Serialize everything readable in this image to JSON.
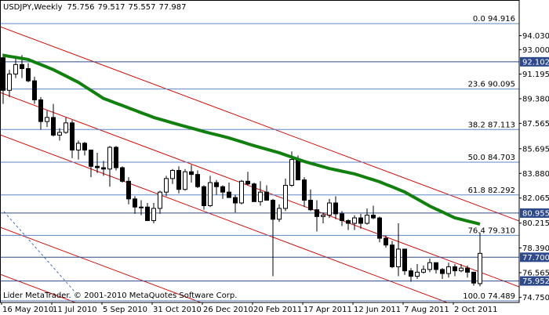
{
  "chart_data": {
    "type": "candlestick",
    "symbol": "USDJPY,Weekly",
    "footer": "Lider MetaTrader. © 2001-2010 MetaQuotes Software Corp.",
    "categories": [
      "16 May 2010",
      null,
      null,
      null,
      null,
      null,
      null,
      null,
      "11 Jul 2010",
      null,
      null,
      null,
      null,
      null,
      null,
      null,
      "5 Sep 2010",
      null,
      null,
      null,
      null,
      null,
      null,
      null,
      "31 Oct 2010",
      null,
      null,
      null,
      null,
      null,
      null,
      null,
      "26 Dec 2010",
      null,
      null,
      null,
      null,
      null,
      null,
      null,
      "20 Feb 2011",
      null,
      null,
      null,
      null,
      null,
      null,
      null,
      "17 Apr 2011",
      null,
      null,
      null,
      null,
      null,
      null,
      null,
      "12 Jun 2011",
      null,
      null,
      null,
      null,
      null,
      null,
      null,
      "7 Aug 2011",
      null,
      null,
      null,
      null,
      null,
      null,
      null,
      "2 Oct 2011",
      null,
      null,
      null,
      null
    ],
    "ohlc": [
      [
        92.4,
        92.7,
        89.0,
        90.0
      ],
      [
        90.0,
        91.5,
        89.5,
        91.2
      ],
      [
        91.2,
        92.4,
        90.9,
        91.9
      ],
      [
        91.9,
        92.6,
        90.9,
        91.6
      ],
      [
        91.6,
        92.0,
        90.6,
        90.7
      ],
      [
        90.7,
        91.0,
        89.0,
        89.3
      ],
      [
        89.3,
        89.5,
        87.1,
        87.7
      ],
      [
        87.7,
        88.5,
        87.3,
        88.0
      ],
      [
        88.0,
        89.0,
        86.6,
        86.7
      ],
      [
        86.7,
        87.2,
        86.3,
        86.9
      ],
      [
        86.9,
        88.0,
        86.8,
        87.6
      ],
      [
        87.6,
        87.8,
        85.0,
        85.6
      ],
      [
        85.6,
        86.3,
        84.9,
        86.1
      ],
      [
        86.1,
        86.2,
        85.2,
        85.6
      ],
      [
        85.6,
        85.6,
        83.6,
        84.4
      ],
      [
        84.4,
        85.4,
        83.9,
        84.3
      ],
      [
        84.3,
        84.8,
        83.7,
        84.2
      ],
      [
        84.2,
        85.9,
        82.9,
        85.8
      ],
      [
        85.8,
        85.9,
        84.1,
        84.3
      ],
      [
        84.3,
        84.4,
        83.2,
        83.3
      ],
      [
        83.3,
        83.6,
        81.6,
        82.0
      ],
      [
        82.0,
        82.2,
        80.9,
        81.4
      ],
      [
        81.4,
        81.9,
        80.8,
        81.4
      ],
      [
        81.4,
        81.7,
        80.4,
        80.4
      ],
      [
        80.4,
        81.7,
        80.2,
        81.3
      ],
      [
        81.3,
        82.6,
        80.9,
        82.5
      ],
      [
        82.5,
        83.7,
        82.2,
        83.5
      ],
      [
        83.5,
        84.2,
        83.1,
        84.1
      ],
      [
        84.1,
        84.4,
        82.4,
        82.7
      ],
      [
        82.7,
        84.2,
        82.6,
        84.0
      ],
      [
        84.0,
        84.5,
        83.2,
        83.8
      ],
      [
        83.8,
        84.1,
        82.8,
        82.9
      ],
      [
        82.9,
        83.0,
        81.2,
        81.5
      ],
      [
        81.5,
        83.7,
        81.4,
        83.2
      ],
      [
        83.2,
        83.4,
        82.3,
        82.9
      ],
      [
        82.9,
        83.0,
        82.0,
        82.5
      ],
      [
        82.5,
        83.2,
        82.1,
        82.1
      ],
      [
        82.1,
        82.3,
        81.0,
        81.7
      ],
      [
        81.7,
        83.4,
        81.6,
        83.3
      ],
      [
        83.3,
        84.0,
        83.0,
        83.1
      ],
      [
        83.1,
        83.2,
        81.8,
        81.8
      ],
      [
        81.8,
        83.3,
        81.5,
        82.5
      ],
      [
        82.5,
        83.0,
        81.9,
        81.9
      ],
      [
        81.9,
        82.0,
        76.3,
        80.5
      ],
      [
        80.5,
        81.6,
        80.3,
        81.3
      ],
      [
        81.3,
        83.5,
        81.1,
        83.0
      ],
      [
        83.0,
        85.5,
        82.9,
        84.9
      ],
      [
        84.9,
        85.2,
        83.4,
        83.4
      ],
      [
        83.4,
        83.6,
        81.4,
        81.9
      ],
      [
        81.9,
        82.7,
        81.1,
        81.2
      ],
      [
        81.2,
        81.9,
        79.6,
        80.7
      ],
      [
        80.7,
        81.0,
        80.2,
        80.8
      ],
      [
        80.8,
        82.0,
        80.6,
        81.7
      ],
      [
        81.7,
        82.2,
        80.5,
        80.9
      ],
      [
        80.9,
        81.1,
        80.0,
        80.4
      ],
      [
        80.4,
        80.5,
        79.7,
        80.2
      ],
      [
        80.2,
        80.8,
        79.7,
        80.6
      ],
      [
        80.6,
        80.9,
        79.8,
        80.2
      ],
      [
        80.2,
        81.3,
        80.1,
        80.8
      ],
      [
        80.8,
        81.5,
        80.5,
        80.6
      ],
      [
        80.6,
        80.7,
        78.8,
        79.1
      ],
      [
        79.1,
        79.3,
        78.4,
        78.6
      ],
      [
        78.6,
        78.9,
        76.9,
        77.0
      ],
      [
        77.0,
        80.2,
        76.3,
        78.3
      ],
      [
        78.3,
        78.3,
        76.4,
        76.7
      ],
      [
        76.7,
        76.9,
        75.9,
        76.3
      ],
      [
        76.3,
        77.2,
        76.1,
        76.6
      ],
      [
        76.6,
        77.1,
        76.5,
        76.8
      ],
      [
        76.8,
        77.6,
        76.6,
        77.3
      ],
      [
        77.3,
        77.3,
        76.5,
        76.8
      ],
      [
        76.8,
        76.9,
        76.1,
        76.5
      ],
      [
        76.5,
        77.3,
        76.2,
        77.0
      ],
      [
        77.0,
        77.2,
        76.3,
        76.7
      ],
      [
        76.7,
        77.2,
        76.6,
        76.9
      ],
      [
        76.9,
        77.1,
        76.2,
        76.6
      ],
      [
        76.6,
        76.6,
        75.6,
        75.8
      ],
      [
        75.756,
        79.517,
        75.557,
        77.987
      ]
    ],
    "moving_average": {
      "color": "#12800e",
      "values": [
        92.58,
        92.5,
        92.43,
        92.35,
        92.27,
        92.08,
        91.9,
        91.71,
        91.52,
        91.29,
        91.06,
        90.82,
        90.59,
        90.29,
        90.0,
        89.7,
        89.4,
        89.23,
        89.05,
        88.88,
        88.7,
        88.53,
        88.35,
        88.18,
        88.0,
        87.87,
        87.74,
        87.6,
        87.47,
        87.34,
        87.22,
        87.09,
        86.96,
        86.84,
        86.73,
        86.61,
        86.49,
        86.35,
        86.21,
        86.06,
        85.92,
        85.79,
        85.66,
        85.53,
        85.4,
        85.24,
        85.08,
        84.92,
        84.76,
        84.63,
        84.5,
        84.37,
        84.24,
        84.14,
        84.04,
        83.94,
        83.84,
        83.7,
        83.55,
        83.41,
        83.26,
        83.07,
        82.89,
        82.7,
        82.51,
        82.25,
        81.99,
        81.73,
        81.47,
        81.25,
        81.04,
        80.82,
        80.6,
        80.49,
        80.37,
        80.26,
        80.14
      ]
    },
    "bull_color": "#ffffff",
    "bear_color": "#000000",
    "ylim": [
      74.369,
      96.655
    ],
    "yticks": [
      {
        "value": 94.03,
        "label": "94.030"
      },
      {
        "value": 93.0,
        "label": "93.000"
      },
      {
        "value": 91.195,
        "label": "91.195"
      },
      {
        "value": 89.38,
        "label": "89.380"
      },
      {
        "value": 87.565,
        "label": "87.565"
      },
      {
        "value": 85.695,
        "label": "85.695"
      },
      {
        "value": 83.88,
        "label": "83.880"
      },
      {
        "value": 82.065,
        "label": "82.065"
      },
      {
        "value": 80.215,
        "label": "80.215"
      },
      {
        "value": 78.39,
        "label": "78.390"
      },
      {
        "value": 76.565,
        "label": "76.565"
      },
      {
        "value": 74.75,
        "label": "74.750"
      }
    ],
    "fib_levels": [
      {
        "label": "0.0 94.916",
        "value": 94.916
      },
      {
        "label": "23.6 90.095",
        "value": 90.095
      },
      {
        "label": "38.2 87.113",
        "value": 87.113
      },
      {
        "label": "50.0 84.703",
        "value": 84.703
      },
      {
        "label": "61.8 82.292",
        "value": 82.292
      },
      {
        "label": "76.4 79.310",
        "value": 79.31
      },
      {
        "label": "100.0 74.489",
        "value": 74.489
      }
    ],
    "fib_color": "#5f86c8",
    "price_lines": [
      {
        "value": 92.102,
        "label": "92.102"
      },
      {
        "value": 80.955,
        "label": "80.955"
      },
      {
        "value": 77.7,
        "label": "77.700"
      },
      {
        "value": 75.952,
        "label": "75.952"
      }
    ],
    "price_line_color": "#2e4a8c"
  }
}
